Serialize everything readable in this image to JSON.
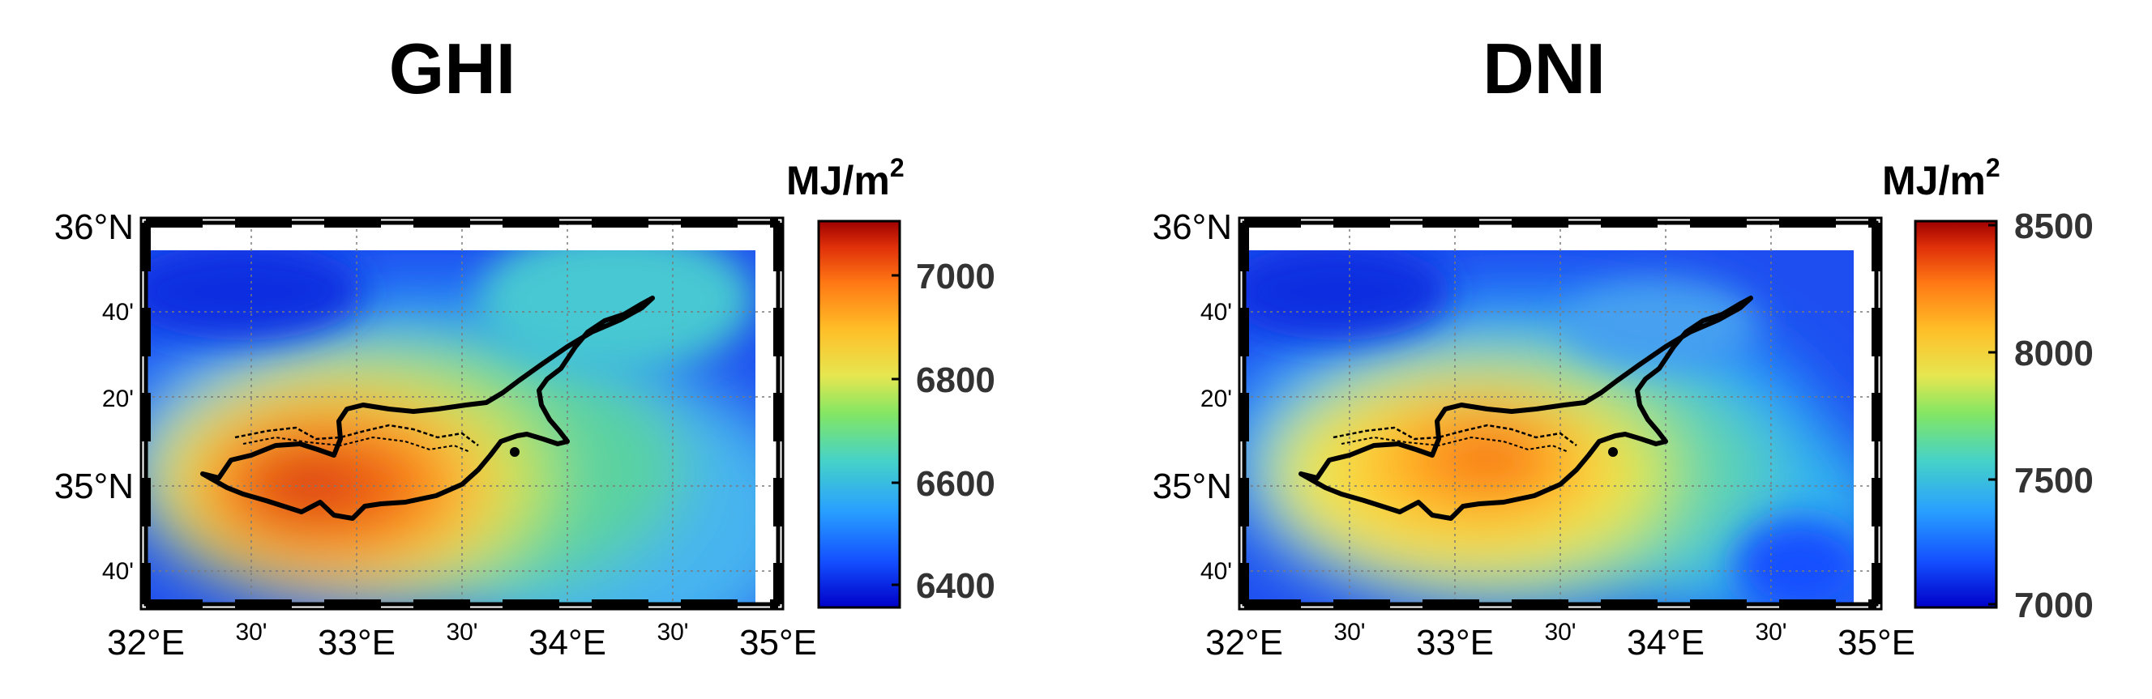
{
  "panels": [
    {
      "title": "GHI",
      "unit": "MJ/m",
      "unit_sup": "2",
      "colorbar_ticks": [
        "7000",
        "6800",
        "6600",
        "6400"
      ],
      "colorbar_range": [
        6350,
        7100
      ]
    },
    {
      "title": "DNI",
      "unit": "MJ/m",
      "unit_sup": "2",
      "colorbar_ticks": [
        "8500",
        "8000",
        "7500",
        "7000"
      ],
      "colorbar_range": [
        7000,
        8500
      ]
    }
  ],
  "lat_labels": [
    "36°N",
    "40'",
    "20'",
    "35°N",
    "40'"
  ],
  "lon_labels": [
    "32°E",
    "30'",
    "33°E",
    "30'",
    "34°E",
    "30'",
    "35°E"
  ],
  "colors": {
    "scale": [
      "#0000c8",
      "#1e64ff",
      "#32b4f0",
      "#5ad2a0",
      "#b4e65a",
      "#f5e650",
      "#ffb428",
      "#ff7814",
      "#e63c0a",
      "#aa0000"
    ]
  }
}
